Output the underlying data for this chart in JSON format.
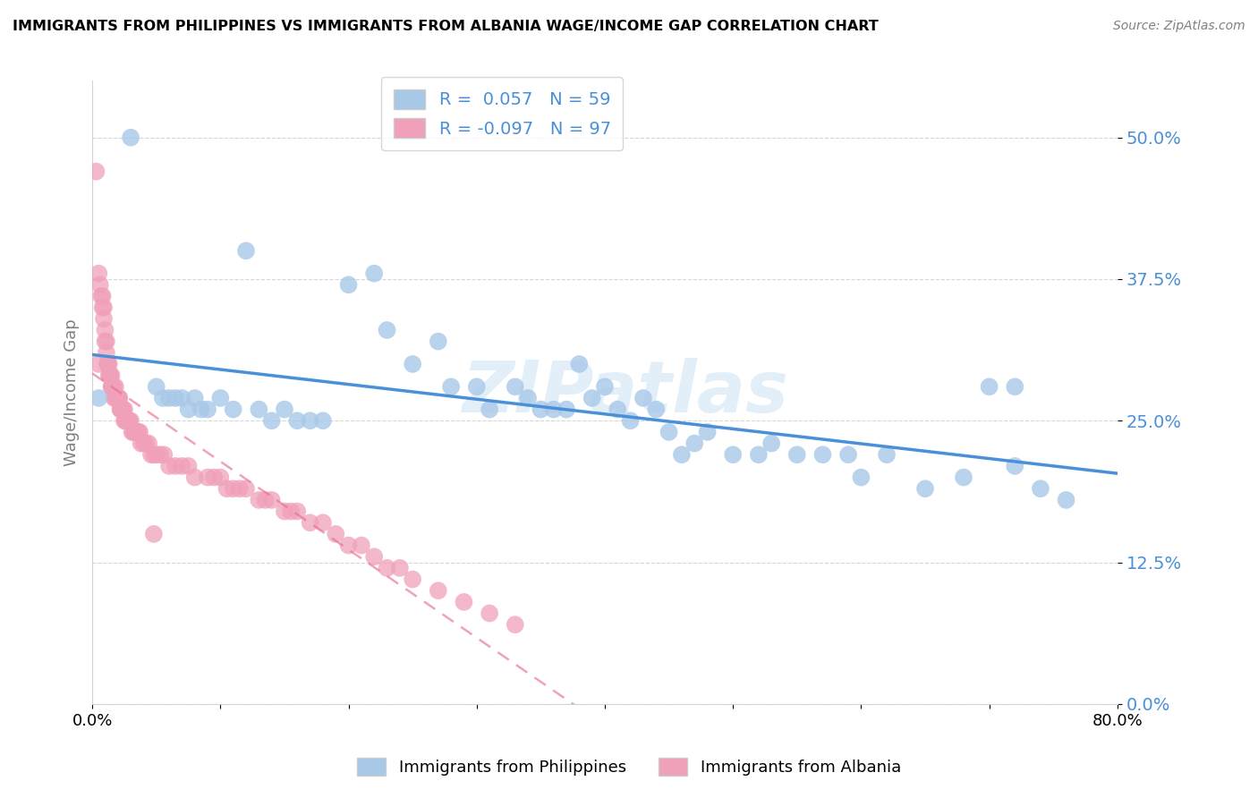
{
  "title": "IMMIGRANTS FROM PHILIPPINES VS IMMIGRANTS FROM ALBANIA WAGE/INCOME GAP CORRELATION CHART",
  "source": "Source: ZipAtlas.com",
  "ylabel": "Wage/Income Gap",
  "xlim": [
    0.0,
    0.8
  ],
  "ylim": [
    0.0,
    0.55
  ],
  "yticks": [
    0.0,
    0.125,
    0.25,
    0.375,
    0.5
  ],
  "ytick_labels": [
    "0.0%",
    "12.5%",
    "25.0%",
    "37.5%",
    "50.0%"
  ],
  "xticks": [
    0.0,
    0.1,
    0.2,
    0.3,
    0.4,
    0.5,
    0.6,
    0.7,
    0.8
  ],
  "xtick_labels": [
    "0.0%",
    "",
    "",
    "",
    "",
    "",
    "",
    "",
    "80.0%"
  ],
  "R_blue": 0.057,
  "N_blue": 59,
  "R_pink": -0.097,
  "N_pink": 97,
  "blue_color": "#a8c8e8",
  "pink_color": "#f0a0b8",
  "blue_line_color": "#4a90d9",
  "pink_line_color": "#e87090",
  "watermark": "ZIPatlas",
  "watermark_color": "#b8d8f0",
  "blue_scatter_x": [
    0.005,
    0.03,
    0.05,
    0.055,
    0.06,
    0.065,
    0.07,
    0.075,
    0.08,
    0.085,
    0.09,
    0.1,
    0.11,
    0.12,
    0.13,
    0.14,
    0.15,
    0.16,
    0.17,
    0.18,
    0.2,
    0.22,
    0.23,
    0.25,
    0.27,
    0.28,
    0.3,
    0.31,
    0.33,
    0.34,
    0.35,
    0.36,
    0.37,
    0.38,
    0.39,
    0.4,
    0.41,
    0.42,
    0.43,
    0.44,
    0.45,
    0.46,
    0.47,
    0.48,
    0.5,
    0.52,
    0.53,
    0.55,
    0.57,
    0.59,
    0.6,
    0.62,
    0.65,
    0.68,
    0.7,
    0.72,
    0.74,
    0.76,
    0.72
  ],
  "blue_scatter_y": [
    0.27,
    0.5,
    0.28,
    0.27,
    0.27,
    0.27,
    0.27,
    0.26,
    0.27,
    0.26,
    0.26,
    0.27,
    0.26,
    0.4,
    0.26,
    0.25,
    0.26,
    0.25,
    0.25,
    0.25,
    0.37,
    0.38,
    0.33,
    0.3,
    0.32,
    0.28,
    0.28,
    0.26,
    0.28,
    0.27,
    0.26,
    0.26,
    0.26,
    0.3,
    0.27,
    0.28,
    0.26,
    0.25,
    0.27,
    0.26,
    0.24,
    0.22,
    0.23,
    0.24,
    0.22,
    0.22,
    0.23,
    0.22,
    0.22,
    0.22,
    0.2,
    0.22,
    0.19,
    0.2,
    0.28,
    0.21,
    0.19,
    0.18,
    0.28
  ],
  "pink_scatter_x": [
    0.003,
    0.005,
    0.006,
    0.007,
    0.008,
    0.008,
    0.009,
    0.009,
    0.01,
    0.01,
    0.011,
    0.011,
    0.012,
    0.012,
    0.012,
    0.013,
    0.013,
    0.014,
    0.014,
    0.015,
    0.015,
    0.015,
    0.016,
    0.016,
    0.017,
    0.017,
    0.018,
    0.018,
    0.019,
    0.019,
    0.02,
    0.02,
    0.021,
    0.021,
    0.022,
    0.022,
    0.023,
    0.023,
    0.024,
    0.024,
    0.025,
    0.025,
    0.026,
    0.026,
    0.027,
    0.028,
    0.029,
    0.03,
    0.031,
    0.032,
    0.033,
    0.034,
    0.035,
    0.036,
    0.037,
    0.038,
    0.04,
    0.042,
    0.044,
    0.046,
    0.048,
    0.05,
    0.053,
    0.056,
    0.06,
    0.065,
    0.07,
    0.075,
    0.08,
    0.09,
    0.095,
    0.1,
    0.105,
    0.11,
    0.115,
    0.12,
    0.13,
    0.135,
    0.14,
    0.15,
    0.155,
    0.16,
    0.17,
    0.18,
    0.19,
    0.2,
    0.21,
    0.22,
    0.23,
    0.24,
    0.25,
    0.27,
    0.29,
    0.31,
    0.33,
    0.005,
    0.048
  ],
  "pink_scatter_y": [
    0.47,
    0.38,
    0.37,
    0.36,
    0.36,
    0.35,
    0.35,
    0.34,
    0.33,
    0.32,
    0.32,
    0.31,
    0.3,
    0.3,
    0.3,
    0.3,
    0.29,
    0.29,
    0.29,
    0.29,
    0.28,
    0.28,
    0.28,
    0.28,
    0.28,
    0.27,
    0.28,
    0.27,
    0.27,
    0.27,
    0.27,
    0.27,
    0.27,
    0.27,
    0.26,
    0.26,
    0.26,
    0.26,
    0.26,
    0.26,
    0.26,
    0.25,
    0.25,
    0.25,
    0.25,
    0.25,
    0.25,
    0.25,
    0.24,
    0.24,
    0.24,
    0.24,
    0.24,
    0.24,
    0.24,
    0.23,
    0.23,
    0.23,
    0.23,
    0.22,
    0.22,
    0.22,
    0.22,
    0.22,
    0.21,
    0.21,
    0.21,
    0.21,
    0.2,
    0.2,
    0.2,
    0.2,
    0.19,
    0.19,
    0.19,
    0.19,
    0.18,
    0.18,
    0.18,
    0.17,
    0.17,
    0.17,
    0.16,
    0.16,
    0.15,
    0.14,
    0.14,
    0.13,
    0.12,
    0.12,
    0.11,
    0.1,
    0.09,
    0.08,
    0.07,
    0.3,
    0.15
  ]
}
